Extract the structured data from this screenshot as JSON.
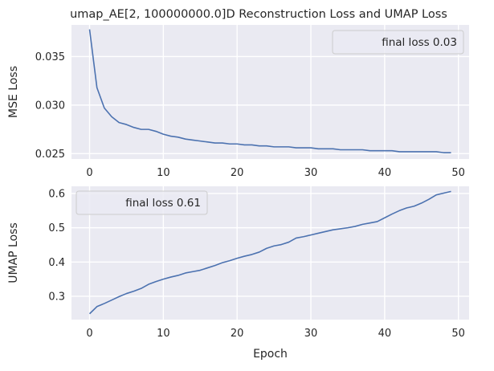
{
  "figure_title": "umap_AE[2, 100000000.0]D Reconstruction Loss and UMAP Loss",
  "chart_data": [
    {
      "type": "line",
      "title": "umap_AE[2, 100000000.0]D Reconstruction Loss and UMAP Loss",
      "xlabel": "",
      "ylabel": "MSE Loss",
      "xlim": [
        -2.45,
        51.45
      ],
      "ylim": [
        0.02445,
        0.03826
      ],
      "xticks": [
        0,
        10,
        20,
        30,
        40,
        50
      ],
      "xtick_labels": [
        "0",
        "10",
        "20",
        "30",
        "40",
        "50"
      ],
      "yticks": [
        0.025,
        0.03,
        0.035
      ],
      "ytick_labels": [
        "0.025",
        "0.030",
        "0.035"
      ],
      "grid": true,
      "legend_position": "top-right",
      "series": [
        {
          "name": "final loss 0.03",
          "color": "#4c72b0",
          "x": [
            0,
            1,
            2,
            3,
            4,
            5,
            6,
            7,
            8,
            9,
            10,
            11,
            12,
            13,
            14,
            15,
            16,
            17,
            18,
            19,
            20,
            21,
            22,
            23,
            24,
            25,
            26,
            27,
            28,
            29,
            30,
            31,
            32,
            33,
            34,
            35,
            36,
            37,
            38,
            39,
            40,
            41,
            42,
            43,
            44,
            45,
            46,
            47,
            48,
            49
          ],
          "values": [
            0.0378,
            0.0318,
            0.0297,
            0.0288,
            0.0282,
            0.028,
            0.0277,
            0.0275,
            0.0275,
            0.0273,
            0.027,
            0.0268,
            0.0267,
            0.0265,
            0.0264,
            0.0263,
            0.0262,
            0.0261,
            0.0261,
            0.026,
            0.026,
            0.0259,
            0.0259,
            0.0258,
            0.0258,
            0.0257,
            0.0257,
            0.0257,
            0.0256,
            0.0256,
            0.0256,
            0.0255,
            0.0255,
            0.0255,
            0.0254,
            0.0254,
            0.0254,
            0.0254,
            0.0253,
            0.0253,
            0.0253,
            0.0253,
            0.0252,
            0.0252,
            0.0252,
            0.0252,
            0.0252,
            0.0252,
            0.0251,
            0.0251
          ]
        }
      ]
    },
    {
      "type": "line",
      "title": "",
      "xlabel": "Epoch",
      "ylabel": "UMAP Loss",
      "xlim": [
        -2.45,
        51.45
      ],
      "ylim": [
        0.232,
        0.621
      ],
      "xticks": [
        0,
        10,
        20,
        30,
        40,
        50
      ],
      "xtick_labels": [
        "0",
        "10",
        "20",
        "30",
        "40",
        "50"
      ],
      "yticks": [
        0.3,
        0.4,
        0.5,
        0.6
      ],
      "ytick_labels": [
        "0.3",
        "0.4",
        "0.5",
        "0.6"
      ],
      "grid": true,
      "legend_position": "top-left",
      "series": [
        {
          "name": "final loss 0.61",
          "color": "#4c72b0",
          "x": [
            0,
            1,
            2,
            3,
            4,
            5,
            6,
            7,
            8,
            9,
            10,
            11,
            12,
            13,
            14,
            15,
            16,
            17,
            18,
            19,
            20,
            21,
            22,
            23,
            24,
            25,
            26,
            27,
            28,
            29,
            30,
            31,
            32,
            33,
            34,
            35,
            36,
            37,
            38,
            39,
            40,
            41,
            42,
            43,
            44,
            45,
            46,
            47,
            48,
            49
          ],
          "values": [
            0.249,
            0.27,
            0.279,
            0.289,
            0.299,
            0.308,
            0.315,
            0.323,
            0.335,
            0.343,
            0.35,
            0.356,
            0.361,
            0.368,
            0.372,
            0.376,
            0.383,
            0.39,
            0.398,
            0.404,
            0.411,
            0.417,
            0.422,
            0.429,
            0.44,
            0.447,
            0.451,
            0.458,
            0.47,
            0.474,
            0.479,
            0.484,
            0.489,
            0.494,
            0.497,
            0.5,
            0.504,
            0.51,
            0.514,
            0.518,
            0.529,
            0.54,
            0.55,
            0.558,
            0.563,
            0.572,
            0.583,
            0.596,
            0.601,
            0.606
          ]
        }
      ]
    }
  ]
}
